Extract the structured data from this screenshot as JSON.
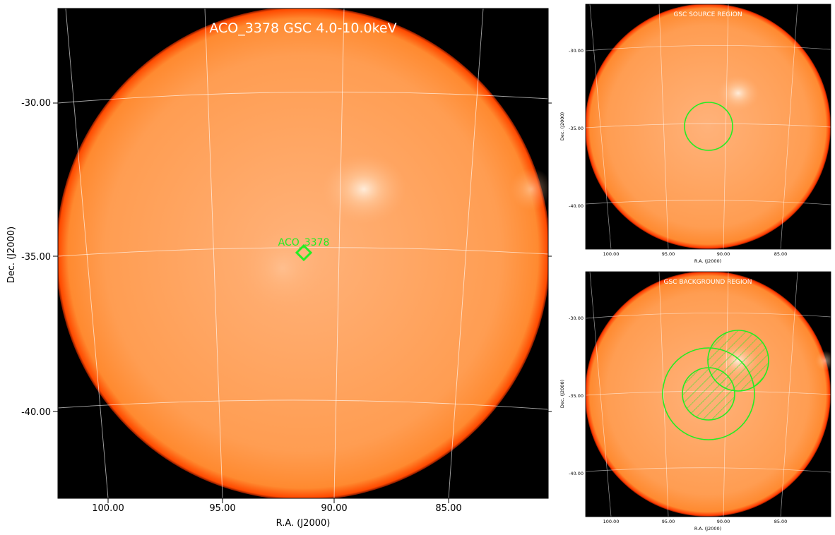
{
  "main": {
    "title": "ACO_3378 GSC 4.0-10.0keV",
    "xlabel": "R.A. (J2000)",
    "ylabel": "Dec. (J2000)",
    "x_ticks": [
      "100.00",
      "95.00",
      "90.00",
      "85.00"
    ],
    "y_ticks": [
      "-30.00",
      "-35.00",
      "-40.00"
    ],
    "source_label": "ACO_3378"
  },
  "source_panel": {
    "title": "GSC SOURCE REGION",
    "xlabel": "R.A. (J2000)",
    "ylabel": "Dec. (J2000)",
    "x_ticks": [
      "100.00",
      "95.00",
      "90.00",
      "85.00"
    ],
    "y_ticks": [
      "-30.00",
      "-35.00",
      "-40.00"
    ]
  },
  "background_panel": {
    "title": "GSC BACKGROUND REGION",
    "xlabel": "R.A. (J2000)",
    "ylabel": "Dec. (J2000)",
    "x_ticks": [
      "100.00",
      "95.00",
      "90.00",
      "85.00"
    ],
    "y_ticks": [
      "-30.00",
      "-35.00",
      "-40.00"
    ]
  },
  "colors": {
    "disk": "#ff9a4a",
    "disk_edge": "#ff5a00",
    "sky": "#000000",
    "region": "#22ee22"
  }
}
